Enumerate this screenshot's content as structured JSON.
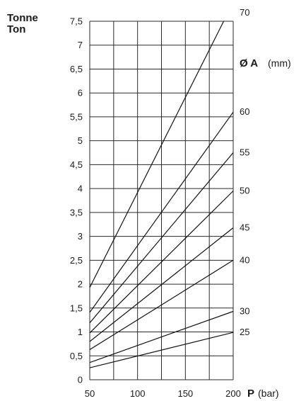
{
  "chart_data": {
    "type": "line",
    "ylabel_lines": [
      "Tonne",
      "Ton"
    ],
    "xlabel": {
      "symbol": "P",
      "unit": "(bar)"
    },
    "annotation": {
      "symbol": "Ø A",
      "unit": "(mm)"
    },
    "xlim": [
      50,
      200
    ],
    "ylim": [
      0,
      7.5
    ],
    "x_ticks": [
      {
        "v": 50,
        "label": "50"
      },
      {
        "v": 100,
        "label": "100"
      },
      {
        "v": 150,
        "label": "150"
      },
      {
        "v": 200,
        "label": "200"
      }
    ],
    "x_grid": [
      50,
      75,
      100,
      125,
      150,
      175,
      200
    ],
    "y_ticks": [
      {
        "v": 0,
        "label": "0"
      },
      {
        "v": 0.5,
        "label": "0,5"
      },
      {
        "v": 1,
        "label": "1"
      },
      {
        "v": 1.5,
        "label": "1,5"
      },
      {
        "v": 2,
        "label": "2"
      },
      {
        "v": 2.5,
        "label": "2,5"
      },
      {
        "v": 3,
        "label": "3"
      },
      {
        "v": 3.5,
        "label": "3,5"
      },
      {
        "v": 4,
        "label": "4"
      },
      {
        "v": 4.5,
        "label": "4,5"
      },
      {
        "v": 5,
        "label": "5"
      },
      {
        "v": 5.5,
        "label": "5,5"
      },
      {
        "v": 6,
        "label": "6"
      },
      {
        "v": 6.5,
        "label": "6,5"
      },
      {
        "v": 7,
        "label": "7"
      },
      {
        "v": 7.5,
        "label": "7,5"
      }
    ],
    "grid": true,
    "series": [
      {
        "name": "70",
        "x": [
          50,
          190
        ],
        "y": [
          1.93,
          7.5
        ]
      },
      {
        "name": "60",
        "x": [
          50,
          200
        ],
        "y": [
          1.41,
          5.6
        ]
      },
      {
        "name": "55",
        "x": [
          50,
          200
        ],
        "y": [
          1.19,
          4.75
        ]
      },
      {
        "name": "50",
        "x": [
          50,
          200
        ],
        "y": [
          0.98,
          3.95
        ]
      },
      {
        "name": "45",
        "x": [
          50,
          200
        ],
        "y": [
          0.8,
          3.18
        ]
      },
      {
        "name": "40",
        "x": [
          50,
          200
        ],
        "y": [
          0.63,
          2.5
        ]
      },
      {
        "name": "30",
        "x": [
          50,
          200
        ],
        "y": [
          0.36,
          1.43
        ]
      },
      {
        "name": "25",
        "x": [
          50,
          200
        ],
        "y": [
          0.25,
          0.99
        ]
      }
    ],
    "series_label_top": "70"
  }
}
